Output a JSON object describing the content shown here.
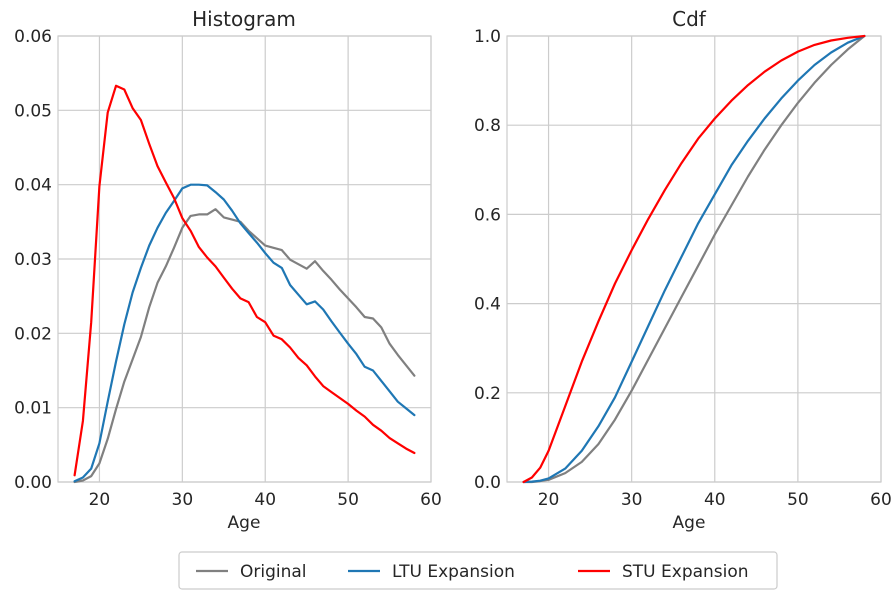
{
  "chart_data": [
    {
      "type": "line",
      "title": "Histogram",
      "xlabel": "Age",
      "ylabel": "",
      "xlim": [
        15,
        60
      ],
      "ylim": [
        0,
        0.06
      ],
      "xticks": [
        "20",
        "30",
        "40",
        "50",
        "60"
      ],
      "yticks": [
        "0.00",
        "0.01",
        "0.02",
        "0.03",
        "0.04",
        "0.05",
        "0.06"
      ],
      "grid": true,
      "x": [
        17,
        18,
        19,
        20,
        21,
        22,
        23,
        24,
        25,
        26,
        27,
        28,
        29,
        30,
        31,
        32,
        33,
        34,
        35,
        36,
        37,
        38,
        39,
        40,
        41,
        42,
        43,
        44,
        45,
        46,
        47,
        48,
        49,
        50,
        51,
        52,
        53,
        54,
        55,
        56,
        57,
        58
      ],
      "series": [
        {
          "name": "Original",
          "color": "#808080",
          "values": [
            0.0,
            0.0002,
            0.0008,
            0.0025,
            0.0058,
            0.0098,
            0.0135,
            0.0165,
            0.0195,
            0.0235,
            0.0268,
            0.029,
            0.0315,
            0.0342,
            0.0358,
            0.036,
            0.036,
            0.0367,
            0.0356,
            0.0353,
            0.035,
            0.0338,
            0.0328,
            0.0318,
            0.0315,
            0.0312,
            0.0299,
            0.0293,
            0.0287,
            0.0297,
            0.0284,
            0.0272,
            0.0259,
            0.0247,
            0.0235,
            0.0222,
            0.022,
            0.0208,
            0.0186,
            0.0171,
            0.0157,
            0.0143
          ]
        },
        {
          "name": "LTU Expansion",
          "color": "#1f77b4",
          "values": [
            0.0001,
            0.0006,
            0.0018,
            0.0052,
            0.0108,
            0.0162,
            0.0212,
            0.0255,
            0.0288,
            0.0318,
            0.0342,
            0.0362,
            0.0378,
            0.0395,
            0.04,
            0.04,
            0.0399,
            0.039,
            0.038,
            0.0365,
            0.0348,
            0.0335,
            0.0322,
            0.0308,
            0.0295,
            0.0288,
            0.0265,
            0.0252,
            0.0239,
            0.0243,
            0.0232,
            0.0216,
            0.0201,
            0.0186,
            0.0172,
            0.0155,
            0.015,
            0.0136,
            0.0122,
            0.0108,
            0.0099,
            0.009
          ]
        },
        {
          "name": "STU Expansion",
          "color": "#ff0000",
          "values": [
            0.0009,
            0.0082,
            0.0215,
            0.0398,
            0.0497,
            0.0533,
            0.0528,
            0.0503,
            0.0487,
            0.0455,
            0.0425,
            0.0403,
            0.0382,
            0.0355,
            0.0338,
            0.0316,
            0.0302,
            0.029,
            0.0275,
            0.026,
            0.0247,
            0.0242,
            0.0222,
            0.0215,
            0.0197,
            0.0192,
            0.0181,
            0.0167,
            0.0157,
            0.0142,
            0.0129,
            0.0121,
            0.0113,
            0.0105,
            0.0096,
            0.0088,
            0.0077,
            0.0069,
            0.0059,
            0.0052,
            0.0045,
            0.0039
          ]
        }
      ]
    },
    {
      "type": "line",
      "title": "Cdf",
      "xlabel": "Age",
      "ylabel": "",
      "xlim": [
        15,
        60
      ],
      "ylim": [
        0,
        1.0
      ],
      "xticks": [
        "20",
        "30",
        "40",
        "50",
        "60"
      ],
      "yticks": [
        "0.0",
        "0.2",
        "0.4",
        "0.6",
        "0.8",
        "1.0"
      ],
      "grid": true,
      "x": [
        17,
        18,
        19,
        20,
        22,
        24,
        26,
        28,
        30,
        32,
        34,
        36,
        38,
        40,
        42,
        44,
        46,
        48,
        50,
        52,
        54,
        56,
        58
      ],
      "series": [
        {
          "name": "Original",
          "color": "#808080",
          "values": [
            0.0,
            0.0,
            0.002,
            0.005,
            0.02,
            0.045,
            0.085,
            0.14,
            0.205,
            0.275,
            0.345,
            0.415,
            0.485,
            0.555,
            0.62,
            0.685,
            0.745,
            0.8,
            0.85,
            0.895,
            0.935,
            0.97,
            1.0
          ]
        },
        {
          "name": "LTU Expansion",
          "color": "#1f77b4",
          "values": [
            0.0,
            0.001,
            0.003,
            0.008,
            0.03,
            0.07,
            0.125,
            0.19,
            0.27,
            0.35,
            0.43,
            0.505,
            0.58,
            0.645,
            0.71,
            0.765,
            0.815,
            0.86,
            0.9,
            0.935,
            0.963,
            0.985,
            1.0
          ]
        },
        {
          "name": "STU Expansion",
          "color": "#ff0000",
          "values": [
            0.0,
            0.01,
            0.032,
            0.07,
            0.17,
            0.27,
            0.36,
            0.445,
            0.52,
            0.59,
            0.655,
            0.715,
            0.77,
            0.815,
            0.855,
            0.89,
            0.92,
            0.945,
            0.965,
            0.98,
            0.99,
            0.996,
            1.0
          ]
        }
      ]
    }
  ],
  "legend": {
    "placement": "bottom-center",
    "entries": [
      {
        "label": "Original",
        "color": "#808080"
      },
      {
        "label": "LTU Expansion",
        "color": "#1f77b4"
      },
      {
        "label": "STU Expansion",
        "color": "#ff0000"
      }
    ]
  }
}
